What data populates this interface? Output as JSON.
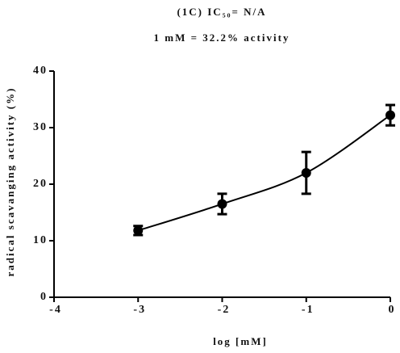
{
  "chart_data": {
    "type": "line",
    "title": "(1C) IC₅₀= N/A",
    "subtitle": "1 mM = 32.2% activity",
    "x_label": "log [mM]",
    "y_label": "radical scavanging activity (%)",
    "x": [
      -3,
      -2,
      -1,
      0
    ],
    "series": [
      {
        "color": "#000000",
        "values": [
          11.8,
          16.5,
          22,
          32.2
        ],
        "errors": [
          0.8,
          1.8,
          3.7,
          1.8
        ]
      }
    ],
    "xlim": [
      -4,
      0
    ],
    "xticks": [
      -4,
      -3,
      -2,
      -1,
      0
    ],
    "ylim": [
      0,
      40
    ],
    "yticks": [
      0,
      10,
      20,
      30,
      40
    ]
  }
}
